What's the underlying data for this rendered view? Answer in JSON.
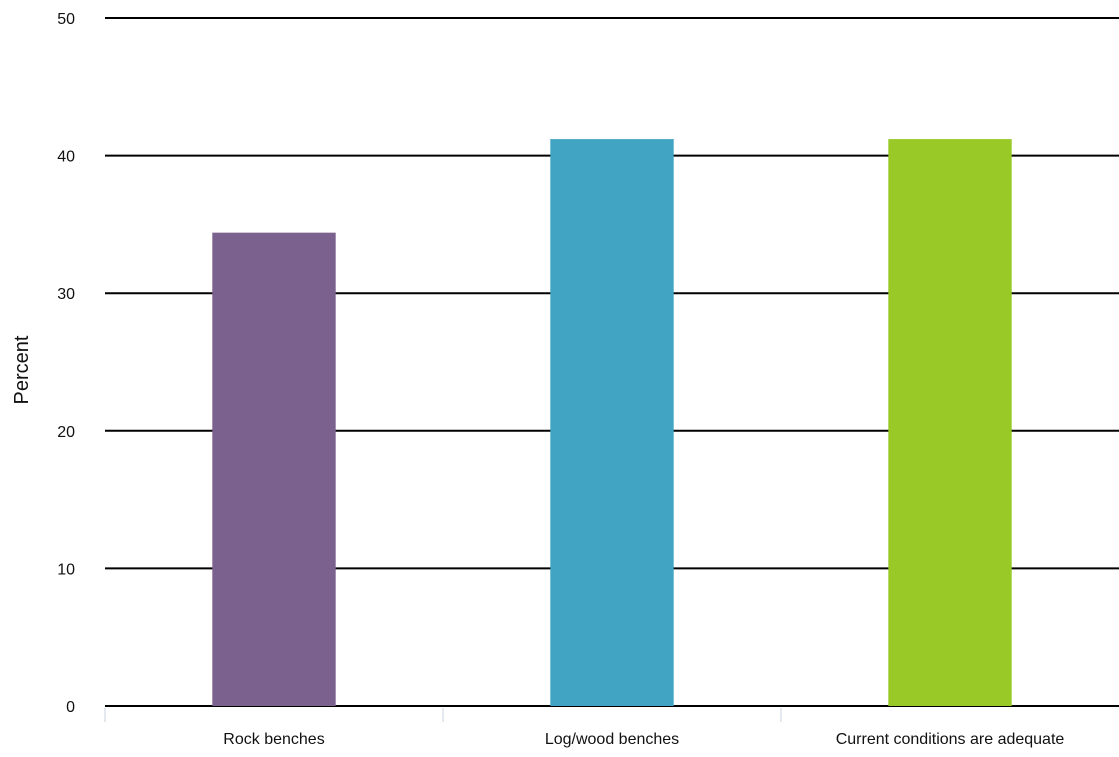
{
  "chart_data": {
    "type": "bar",
    "title": "",
    "xlabel": "",
    "ylabel": "Percent",
    "ylim": [
      0,
      50
    ],
    "yticks": [
      0,
      10,
      20,
      30,
      40,
      50
    ],
    "grid": true,
    "categories": [
      "Rock benches",
      "Log/wood benches",
      "Current conditions are adequate"
    ],
    "values": [
      34.4,
      41.2,
      41.2
    ],
    "colors": [
      "#7b618e",
      "#41a4c3",
      "#98c927"
    ]
  }
}
